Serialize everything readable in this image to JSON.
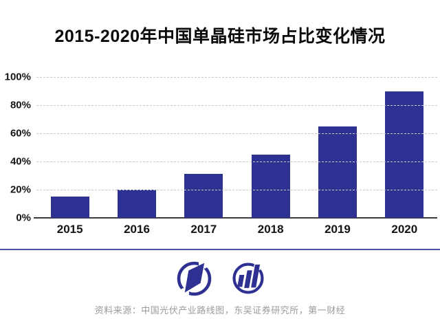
{
  "title": "2015-2020年中国单晶硅市场占比变化情况",
  "chart_data": {
    "type": "bar",
    "title": "2015-2020年中国单晶硅市场占比变化情况",
    "categories": [
      "2015",
      "2016",
      "2017",
      "2018",
      "2019",
      "2020"
    ],
    "values": [
      15,
      20,
      31,
      45,
      65,
      90
    ],
    "xlabel": "",
    "ylabel": "",
    "ylim": [
      0,
      100
    ],
    "yticks": [
      0,
      20,
      40,
      60,
      80,
      100
    ],
    "ytick_labels": [
      "0%",
      "20%",
      "40%",
      "60%",
      "80%",
      "100%"
    ],
    "grid": "horizontal-dashed",
    "legend": "none",
    "bar_color": "#2e3192"
  },
  "footer": {
    "logos": [
      {
        "name": "yicai-circle-logo"
      },
      {
        "name": "rising-bars-circle-logo"
      }
    ],
    "source": "资料来源：中国光伏产业路线图，东吴证券研究所，第一财经"
  },
  "colors": {
    "bar": "#2e3192",
    "logo": "#2e3192",
    "divider": "#4a4fa3",
    "grid": "#c9c9c9",
    "axis": "#3a3a3c",
    "title_text": "#0a0a0a",
    "source_text": "#9b9b9b"
  }
}
